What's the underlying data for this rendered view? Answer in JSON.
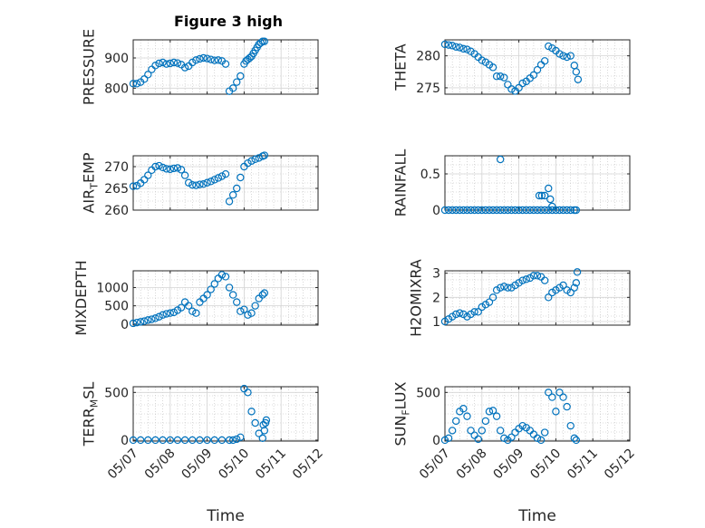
{
  "figure": {
    "title": "Figure 3 high",
    "marker_color": "#0072BD",
    "x_tick_labels": [
      "05/07",
      "05/08",
      "05/09",
      "05/10",
      "05/11",
      "05/12"
    ]
  },
  "chart_data": [
    {
      "type": "scatter",
      "id": "pressure",
      "ylabel_main": "PRESSURE",
      "ylabel_sub": "",
      "ylabel_tail": "",
      "xlim": [
        0,
        5
      ],
      "ylim": [
        780,
        960
      ],
      "yticks": [
        800,
        900
      ],
      "yticklabels": [
        "800",
        "900"
      ],
      "xlabel": "",
      "show_xticklabels": false,
      "grid": true,
      "x": [
        0,
        0.1,
        0.2,
        0.3,
        0.4,
        0.5,
        0.6,
        0.7,
        0.8,
        0.9,
        1.0,
        1.1,
        1.2,
        1.3,
        1.4,
        1.5,
        1.6,
        1.7,
        1.8,
        1.9,
        2.0,
        2.1,
        2.2,
        2.3,
        2.4,
        2.5,
        2.6,
        2.7,
        2.8,
        2.9,
        3.0,
        3.05,
        3.1,
        3.15,
        3.2,
        3.25,
        3.3,
        3.35,
        3.4,
        3.45,
        3.5,
        3.55
      ],
      "y": [
        815,
        815,
        820,
        830,
        845,
        862,
        875,
        882,
        885,
        880,
        882,
        885,
        883,
        878,
        868,
        873,
        885,
        893,
        897,
        900,
        898,
        895,
        892,
        893,
        890,
        880,
        790,
        800,
        820,
        840,
        880,
        890,
        895,
        900,
        905,
        915,
        925,
        935,
        945,
        950,
        955,
        955
      ]
    },
    {
      "type": "scatter",
      "id": "theta",
      "ylabel_main": "THETA",
      "ylabel_sub": "",
      "ylabel_tail": "",
      "xlim": [
        0,
        5
      ],
      "ylim": [
        274,
        282.5
      ],
      "yticks": [
        275,
        280
      ],
      "yticklabels": [
        "275",
        "280"
      ],
      "xlabel": "",
      "show_xticklabels": false,
      "grid": true,
      "x": [
        0,
        0.1,
        0.2,
        0.3,
        0.4,
        0.5,
        0.6,
        0.7,
        0.8,
        0.9,
        1.0,
        1.1,
        1.2,
        1.3,
        1.4,
        1.5,
        1.6,
        1.7,
        1.8,
        1.9,
        2.0,
        2.1,
        2.2,
        2.3,
        2.4,
        2.5,
        2.6,
        2.7,
        2.8,
        2.9,
        3.0,
        3.1,
        3.2,
        3.3,
        3.4,
        3.5,
        3.55,
        3.6
      ],
      "y": [
        281.8,
        281.7,
        281.6,
        281.4,
        281.3,
        281.1,
        281.0,
        280.7,
        280.3,
        279.8,
        279.3,
        279.0,
        278.6,
        278.2,
        276.8,
        276.8,
        276.6,
        275.5,
        274.8,
        274.5,
        275.0,
        275.7,
        276.0,
        276.5,
        277.0,
        277.8,
        278.6,
        279.2,
        281.5,
        281.2,
        280.8,
        280.3,
        280.0,
        279.8,
        280.0,
        278.5,
        277.5,
        276.3
      ]
    },
    {
      "type": "scatter",
      "id": "air_temp",
      "ylabel_main": "AIR",
      "ylabel_sub": "T",
      "ylabel_tail": "EMP",
      "xlim": [
        0,
        5
      ],
      "ylim": [
        260,
        272.5
      ],
      "yticks": [
        260,
        265,
        270
      ],
      "yticklabels": [
        "260",
        "265",
        "270"
      ],
      "xlabel": "",
      "show_xticklabels": false,
      "grid": true,
      "x": [
        0,
        0.1,
        0.2,
        0.3,
        0.4,
        0.5,
        0.6,
        0.7,
        0.8,
        0.9,
        1.0,
        1.1,
        1.2,
        1.3,
        1.4,
        1.5,
        1.6,
        1.7,
        1.8,
        1.9,
        2.0,
        2.1,
        2.2,
        2.3,
        2.4,
        2.5,
        2.6,
        2.7,
        2.8,
        2.9,
        3.0,
        3.1,
        3.2,
        3.3,
        3.4,
        3.5,
        3.55
      ],
      "y": [
        265.5,
        265.6,
        266.2,
        267.0,
        268.0,
        269.2,
        270.0,
        270.2,
        269.8,
        269.5,
        269.4,
        269.6,
        269.7,
        269.3,
        268.0,
        266.3,
        265.8,
        265.7,
        265.9,
        266.0,
        266.3,
        266.6,
        267.0,
        267.4,
        267.8,
        268.3,
        262.0,
        263.5,
        265.0,
        267.5,
        270.0,
        270.8,
        271.3,
        271.7,
        272.0,
        272.4,
        272.6
      ]
    },
    {
      "type": "scatter",
      "id": "rainfall",
      "ylabel_main": "RAINFALL",
      "ylabel_sub": "",
      "ylabel_tail": "",
      "xlim": [
        0,
        5
      ],
      "ylim": [
        0,
        0.75
      ],
      "yticks": [
        0,
        0.5
      ],
      "yticklabels": [
        "0",
        "0.5"
      ],
      "xlabel": "",
      "show_xticklabels": false,
      "grid": true,
      "x": [
        0,
        0.1,
        0.2,
        0.3,
        0.4,
        0.5,
        0.6,
        0.7,
        0.8,
        0.9,
        1.0,
        1.1,
        1.2,
        1.3,
        1.4,
        1.5,
        1.6,
        1.7,
        1.8,
        1.9,
        2.0,
        2.1,
        2.2,
        2.3,
        2.4,
        2.5,
        2.6,
        2.7,
        2.8,
        2.9,
        3.0,
        3.1,
        3.2,
        3.3,
        3.4,
        3.5,
        3.55,
        1.5,
        2.55,
        2.62,
        2.7,
        2.8,
        2.85,
        2.9
      ],
      "y": [
        0,
        0,
        0,
        0,
        0,
        0,
        0,
        0,
        0,
        0,
        0,
        0,
        0,
        0,
        0,
        0,
        0,
        0,
        0,
        0,
        0,
        0,
        0,
        0,
        0,
        0,
        0,
        0,
        0,
        0,
        0,
        0,
        0,
        0,
        0,
        0,
        0,
        0.7,
        0.2,
        0.2,
        0.2,
        0.3,
        0.15,
        0.05
      ]
    },
    {
      "type": "scatter",
      "id": "mixdepth",
      "ylabel_main": "MIXDEPTH",
      "ylabel_sub": "",
      "ylabel_tail": "",
      "xlim": [
        0,
        5
      ],
      "ylim": [
        -30,
        1460
      ],
      "yticks": [
        0,
        500,
        1000
      ],
      "yticklabels": [
        "0",
        "500",
        "1000"
      ],
      "xlabel": "",
      "show_xticklabels": false,
      "grid": true,
      "x": [
        0,
        0.1,
        0.2,
        0.3,
        0.4,
        0.5,
        0.6,
        0.7,
        0.8,
        0.9,
        1.0,
        1.1,
        1.2,
        1.3,
        1.4,
        1.5,
        1.6,
        1.7,
        1.8,
        1.9,
        2.0,
        2.1,
        2.2,
        2.3,
        2.4,
        2.5,
        2.6,
        2.7,
        2.8,
        2.9,
        3.0,
        3.1,
        3.2,
        3.3,
        3.4,
        3.5,
        3.55
      ],
      "y": [
        20,
        40,
        60,
        80,
        110,
        130,
        160,
        200,
        250,
        280,
        300,
        320,
        380,
        450,
        600,
        500,
        350,
        300,
        600,
        700,
        800,
        950,
        1100,
        1250,
        1350,
        1300,
        1000,
        800,
        600,
        350,
        400,
        250,
        300,
        500,
        700,
        800,
        850
      ]
    },
    {
      "type": "scatter",
      "id": "h2omixra",
      "ylabel_main": "H2OMIXRA",
      "ylabel_sub": "",
      "ylabel_tail": "",
      "xlim": [
        0,
        5
      ],
      "ylim": [
        0.85,
        3.1
      ],
      "yticks": [
        1,
        2,
        3
      ],
      "yticklabels": [
        "1",
        "2",
        "3"
      ],
      "xlabel": "",
      "show_xticklabels": false,
      "grid": true,
      "x": [
        0,
        0.1,
        0.2,
        0.3,
        0.4,
        0.5,
        0.6,
        0.7,
        0.8,
        0.9,
        1.0,
        1.1,
        1.2,
        1.3,
        1.4,
        1.5,
        1.6,
        1.7,
        1.8,
        1.9,
        2.0,
        2.1,
        2.2,
        2.3,
        2.4,
        2.5,
        2.6,
        2.7,
        2.8,
        2.9,
        3.0,
        3.1,
        3.2,
        3.3,
        3.4,
        3.5,
        3.55,
        3.58
      ],
      "y": [
        1.0,
        1.1,
        1.2,
        1.3,
        1.35,
        1.3,
        1.2,
        1.3,
        1.4,
        1.4,
        1.6,
        1.7,
        1.8,
        2.0,
        2.3,
        2.4,
        2.45,
        2.4,
        2.4,
        2.5,
        2.6,
        2.7,
        2.75,
        2.8,
        2.9,
        2.9,
        2.85,
        2.7,
        2.0,
        2.2,
        2.3,
        2.4,
        2.5,
        2.3,
        2.2,
        2.4,
        2.6,
        3.05
      ]
    },
    {
      "type": "scatter",
      "id": "terr_msl",
      "ylabel_main": "TERR",
      "ylabel_sub": "M",
      "ylabel_tail": "SL",
      "xlim": [
        0,
        5
      ],
      "ylim": [
        -10,
        560
      ],
      "yticks": [
        0,
        500
      ],
      "yticklabels": [
        "0",
        "500"
      ],
      "xlabel": "Time",
      "show_xticklabels": true,
      "grid": true,
      "x": [
        0,
        0.2,
        0.4,
        0.6,
        0.8,
        1.0,
        1.2,
        1.4,
        1.6,
        1.8,
        2.0,
        2.2,
        2.4,
        2.6,
        2.7,
        2.8,
        2.9,
        3.0,
        3.1,
        3.2,
        3.3,
        3.4,
        3.5,
        3.55,
        3.58,
        3.6,
        3.52
      ],
      "y": [
        0,
        0,
        0,
        0,
        0,
        0,
        0,
        0,
        0,
        0,
        0,
        0,
        0,
        0,
        0,
        10,
        30,
        540,
        500,
        300,
        180,
        70,
        20,
        100,
        180,
        210,
        160
      ]
    },
    {
      "type": "scatter",
      "id": "sun_flux",
      "ylabel_main": "SUN",
      "ylabel_sub": "F",
      "ylabel_tail": "LUX",
      "xlim": [
        0,
        5
      ],
      "ylim": [
        -10,
        560
      ],
      "yticks": [
        0,
        500
      ],
      "yticklabels": [
        "0",
        "500"
      ],
      "xlabel": "Time",
      "show_xticklabels": true,
      "grid": true,
      "x": [
        0,
        0.1,
        0.2,
        0.3,
        0.4,
        0.5,
        0.6,
        0.7,
        0.8,
        0.9,
        1.0,
        1.1,
        1.2,
        1.3,
        1.4,
        1.5,
        1.6,
        1.7,
        1.8,
        1.9,
        2.0,
        2.1,
        2.2,
        2.3,
        2.4,
        2.5,
        2.6,
        2.7,
        2.8,
        2.9,
        3.0,
        3.1,
        3.2,
        3.3,
        3.4,
        3.5,
        3.55
      ],
      "y": [
        0,
        20,
        100,
        200,
        300,
        330,
        250,
        100,
        50,
        10,
        100,
        200,
        300,
        310,
        250,
        100,
        20,
        0,
        30,
        80,
        120,
        150,
        130,
        100,
        60,
        20,
        0,
        80,
        500,
        450,
        300,
        500,
        450,
        350,
        150,
        20,
        0
      ]
    }
  ]
}
